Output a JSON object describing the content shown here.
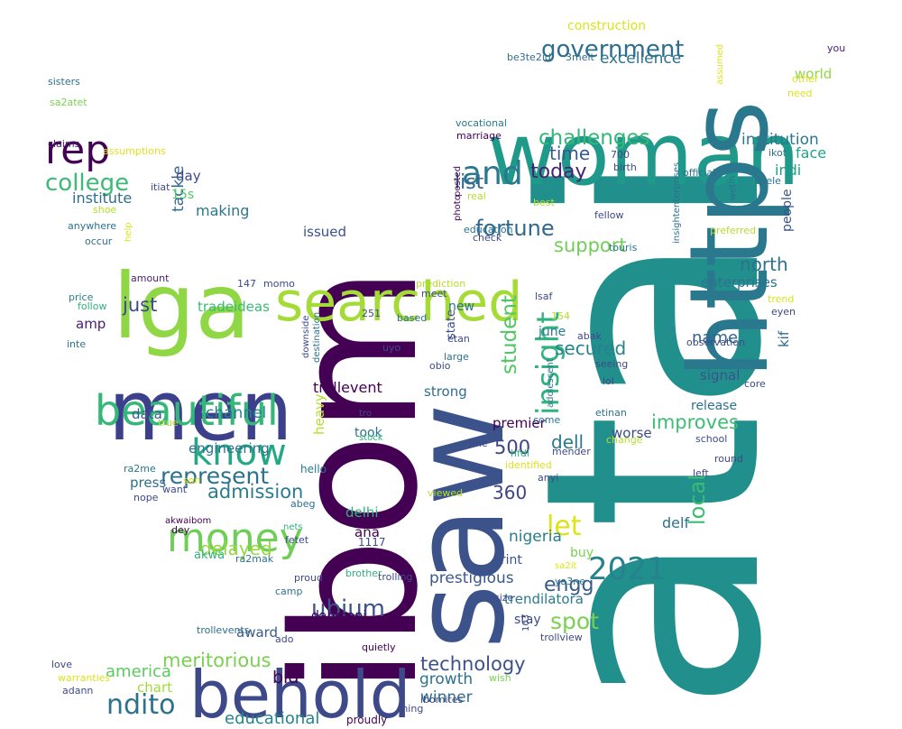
{
  "words": [
    {
      "text": "atai",
      "color": "#21908d"
    },
    {
      "text": "ibom",
      "color": "#440154"
    },
    {
      "text": "saw",
      "color": "#3b528b"
    },
    {
      "text": "woman",
      "color": "#1f9a8a"
    },
    {
      "text": "lga",
      "color": "#8fd744"
    },
    {
      "text": "men",
      "color": "#3b3f8c"
    },
    {
      "text": "https",
      "color": "#2a788e"
    },
    {
      "text": "searched",
      "color": "#a5db36"
    },
    {
      "text": "behold",
      "color": "#3e4989"
    },
    {
      "text": "beautiful",
      "color": "#35b779"
    },
    {
      "text": "rep",
      "color": "#440154"
    },
    {
      "text": "money",
      "color": "#6ece58"
    },
    {
      "text": "know",
      "color": "#22a884"
    },
    {
      "text": "and",
      "color": "#2a788e"
    },
    {
      "text": "government",
      "color": "#2e6e8e"
    },
    {
      "text": "college",
      "color": "#3bbb75"
    },
    {
      "text": "challenges",
      "color": "#35b779"
    },
    {
      "text": "2021",
      "color": "#26828e"
    },
    {
      "text": "represent",
      "color": "#2c728e"
    },
    {
      "text": "insight",
      "color": "#2eb37c"
    },
    {
      "text": "ubium",
      "color": "#3b528b"
    },
    {
      "text": "ndito",
      "color": "#2c728e"
    },
    {
      "text": "fortune",
      "color": "#31688e"
    },
    {
      "text": "today",
      "color": "#482173"
    },
    {
      "text": "admission",
      "color": "#287c8e"
    },
    {
      "text": "improves",
      "color": "#3dbc74"
    },
    {
      "text": "student",
      "color": "#52c569"
    },
    {
      "text": "list",
      "color": "#31688e"
    },
    {
      "text": "let",
      "color": "#dde318"
    },
    {
      "text": "local",
      "color": "#3dbc74"
    },
    {
      "text": "engg",
      "color": "#375a8c"
    },
    {
      "text": "spot",
      "color": "#7ad151"
    },
    {
      "text": "meritorious",
      "color": "#7ad151"
    },
    {
      "text": "technology",
      "color": "#3b528b"
    },
    {
      "text": "north",
      "color": "#2c728e"
    },
    {
      "text": "secured",
      "color": "#25838e"
    },
    {
      "text": "support",
      "color": "#6ece58"
    },
    {
      "text": "delayed",
      "color": "#95d840"
    },
    {
      "text": "america",
      "color": "#5ec962"
    },
    {
      "text": "just",
      "color": "#3e4989"
    },
    {
      "text": "time",
      "color": "#375a8c"
    },
    {
      "text": "excellence",
      "color": "#2c728e"
    },
    {
      "text": "institution",
      "color": "#2a788e"
    },
    {
      "text": "educational",
      "color": "#26828e"
    },
    {
      "text": "500",
      "color": "#404387"
    },
    {
      "text": "360",
      "color": "#404387"
    },
    {
      "text": "dell",
      "color": "#2a788e"
    },
    {
      "text": "tackle",
      "color": "#31688e"
    },
    {
      "text": "channel",
      "color": "#26828e"
    },
    {
      "text": "name",
      "color": "#31688e"
    },
    {
      "text": "bid",
      "color": "#440154"
    },
    {
      "text": "growth",
      "color": "#2c728e"
    },
    {
      "text": "winner",
      "color": "#2e6e8e"
    },
    {
      "text": "nigeria",
      "color": "#287c8e"
    },
    {
      "text": "prestigious",
      "color": "#38598c"
    },
    {
      "text": "trendilatora",
      "color": "#2a788e"
    },
    {
      "text": "world",
      "color": "#8fd744"
    },
    {
      "text": "face",
      "color": "#20a386"
    },
    {
      "text": "indi",
      "color": "#1f9e89"
    },
    {
      "text": "award",
      "color": "#375a8c"
    },
    {
      "text": "making",
      "color": "#2a788e"
    },
    {
      "text": "institute",
      "color": "#2e6e8e"
    },
    {
      "text": "day",
      "color": "#3e4989"
    },
    {
      "text": "15s",
      "color": "#52c569"
    },
    {
      "text": "construction",
      "color": "#dde318"
    },
    {
      "text": "kif",
      "color": "#31688e"
    },
    {
      "text": "people",
      "color": "#3b528b"
    },
    {
      "text": "enterprises",
      "color": "#2c728e"
    },
    {
      "text": "premier",
      "color": "#440154"
    },
    {
      "text": "strong",
      "color": "#2e6e8e"
    },
    {
      "text": "took",
      "color": "#2c728e"
    },
    {
      "text": "heavy",
      "color": "#b5de2b"
    },
    {
      "text": "trollevent",
      "color": "#440154"
    },
    {
      "text": "signal",
      "color": "#3b528b"
    },
    {
      "text": "release",
      "color": "#2c728e"
    },
    {
      "text": "worse",
      "color": "#3e4989"
    },
    {
      "text": "delf",
      "color": "#2c728e"
    },
    {
      "text": "june",
      "color": "#2a788e"
    },
    {
      "text": "engineering",
      "color": "#2c728e"
    },
    {
      "text": "press",
      "color": "#2e6e8e"
    },
    {
      "text": "delhi",
      "color": "#2eb37c"
    },
    {
      "text": "data",
      "color": "#375a8c"
    },
    {
      "text": "issued",
      "color": "#3b528b"
    },
    {
      "text": "amp",
      "color": "#482173"
    },
    {
      "text": "ana",
      "color": "#440154"
    },
    {
      "text": "print",
      "color": "#3b528b"
    },
    {
      "text": "buy",
      "color": "#7ad151"
    },
    {
      "text": "stay",
      "color": "#3e4989"
    },
    {
      "text": "dahmani",
      "color": "#440154"
    },
    {
      "text": "chart",
      "color": "#a0da39"
    },
    {
      "text": "akwa",
      "color": "#2eb37c"
    },
    {
      "text": "new",
      "color": "#2c728e"
    },
    {
      "text": "tradeideas",
      "color": "#3bbb75"
    },
    {
      "text": "state",
      "color": "#3e4989"
    },
    {
      "text": "1117",
      "color": "#3e4989"
    },
    {
      "text": "hello",
      "color": "#2a788e"
    },
    {
      "text": "proudly",
      "color": "#440154"
    },
    {
      "text": "trollview",
      "color": "#3e4989"
    },
    {
      "text": "trollevents",
      "color": "#2e6e8e"
    },
    {
      "text": "posted",
      "color": "#440154"
    },
    {
      "text": "photo",
      "color": "#440154"
    },
    {
      "text": "vocational",
      "color": "#2a788e"
    },
    {
      "text": "marriage",
      "color": "#440154"
    },
    {
      "text": "be3te2id",
      "color": "#2e6e8e"
    },
    {
      "text": "3melt",
      "color": "#2e6e8e"
    },
    {
      "text": "assumed",
      "color": "#dde318"
    },
    {
      "text": "other",
      "color": "#dde318"
    },
    {
      "text": "need",
      "color": "#dde318"
    },
    {
      "text": "you",
      "color": "#482173"
    },
    {
      "text": "sisters",
      "color": "#2c728e"
    },
    {
      "text": "sa2atet",
      "color": "#7ad151"
    },
    {
      "text": "claims",
      "color": "#482173"
    },
    {
      "text": "assumptions",
      "color": "#dde318"
    },
    {
      "text": "itiat",
      "color": "#3e4989"
    },
    {
      "text": "shoe",
      "color": "#b5de2b"
    },
    {
      "text": "anywhere",
      "color": "#2c728e"
    },
    {
      "text": "occur",
      "color": "#2e6e8e"
    },
    {
      "text": "help",
      "color": "#dde318"
    },
    {
      "text": "amount",
      "color": "#482173"
    },
    {
      "text": "147",
      "color": "#3e4989"
    },
    {
      "text": "momo",
      "color": "#3e4989"
    },
    {
      "text": "price",
      "color": "#26828e"
    },
    {
      "text": "follow",
      "color": "#2eb37c"
    },
    {
      "text": "inte",
      "color": "#2c728e"
    },
    {
      "text": "251",
      "color": "#3e4989"
    },
    {
      "text": "based",
      "color": "#2c728e"
    },
    {
      "text": "uyo",
      "color": "#3e4989"
    },
    {
      "text": "downside",
      "color": "#3e4989"
    },
    {
      "text": "destination",
      "color": "#2c728e"
    },
    {
      "text": "true",
      "color": "#b5de2b"
    },
    {
      "text": "ra2me",
      "color": "#2a788e"
    },
    {
      "text": "son",
      "color": "#dde318"
    },
    {
      "text": "want",
      "color": "#3e4989"
    },
    {
      "text": "nope",
      "color": "#3e4989"
    },
    {
      "text": "abeg",
      "color": "#2e6e8e"
    },
    {
      "text": "akwaibom",
      "color": "#440154"
    },
    {
      "text": "dey",
      "color": "#440154"
    },
    {
      "text": "nets",
      "color": "#2eb37c"
    },
    {
      "text": "fetet",
      "color": "#3e4989"
    },
    {
      "text": "ra2mak",
      "color": "#2c728e"
    },
    {
      "text": "camp",
      "color": "#2c728e"
    },
    {
      "text": "brother",
      "color": "#2eb37c"
    },
    {
      "text": "trolling",
      "color": "#3e4989"
    },
    {
      "text": "proud",
      "color": "#3e4989"
    },
    {
      "text": "ado",
      "color": "#3e4989"
    },
    {
      "text": "quietly",
      "color": "#440154"
    },
    {
      "text": "love",
      "color": "#3e4989"
    },
    {
      "text": "warranties",
      "color": "#dde318"
    },
    {
      "text": "adann",
      "color": "#3e4989"
    },
    {
      "text": "wish",
      "color": "#7ad151"
    },
    {
      "text": "thing",
      "color": "#3e4989"
    },
    {
      "text": "ibomites",
      "color": "#3e4989"
    },
    {
      "text": "103",
      "color": "#3e4989"
    },
    {
      "text": "size",
      "color": "#3e4989"
    },
    {
      "text": "ya3ne",
      "color": "#2c728e"
    },
    {
      "text": "sa2it",
      "color": "#dde318"
    },
    {
      "text": "anyi",
      "color": "#3e4989"
    },
    {
      "text": "identified",
      "color": "#dde318"
    },
    {
      "text": "viewed",
      "color": "#b5de2b"
    },
    {
      "text": "fine",
      "color": "#3e4989"
    },
    {
      "text": "hfdi",
      "color": "#2eb37c"
    },
    {
      "text": "mender",
      "color": "#3e4989"
    },
    {
      "text": "stock",
      "color": "#2eb37c"
    },
    {
      "text": "tro",
      "color": "#3e4989"
    },
    {
      "text": "come",
      "color": "#2c728e"
    },
    {
      "text": "change",
      "color": "#b5de2b"
    },
    {
      "text": "etinan",
      "color": "#2c728e"
    },
    {
      "text": "adolescent",
      "color": "#2c728e"
    },
    {
      "text": "lol",
      "color": "#3e4989"
    },
    {
      "text": "seeing",
      "color": "#3e4989"
    },
    {
      "text": "large",
      "color": "#2c728e"
    },
    {
      "text": "obio",
      "color": "#3e4989"
    },
    {
      "text": "etan",
      "color": "#3e4989"
    },
    {
      "text": "abak",
      "color": "#3e4989"
    },
    {
      "text": "154",
      "color": "#b5de2b"
    },
    {
      "text": "lsaf",
      "color": "#3e4989"
    },
    {
      "text": "meet",
      "color": "#3e4989"
    },
    {
      "text": "prediction",
      "color": "#b5de2b"
    },
    {
      "text": "touris",
      "color": "#2c728e"
    },
    {
      "text": "check",
      "color": "#3e4989"
    },
    {
      "text": "education",
      "color": "#2c728e"
    },
    {
      "text": "real",
      "color": "#b5de2b"
    },
    {
      "text": "best",
      "color": "#b5de2b"
    },
    {
      "text": "fellow",
      "color": "#3e4989"
    },
    {
      "text": "preferred",
      "color": "#b5de2b"
    },
    {
      "text": "insightenterprises",
      "color": "#2c728e"
    },
    {
      "text": "birth",
      "color": "#3e4989"
    },
    {
      "text": "700",
      "color": "#3e4989"
    },
    {
      "text": "official",
      "color": "#2c728e"
    },
    {
      "text": "wetin",
      "color": "#2c728e"
    },
    {
      "text": "ikot",
      "color": "#2c728e"
    },
    {
      "text": "kpele",
      "color": "#2c728e"
    },
    {
      "text": "trend",
      "color": "#dde318"
    },
    {
      "text": "eyen",
      "color": "#3e4989"
    },
    {
      "text": "observation",
      "color": "#3e4989"
    },
    {
      "text": "core",
      "color": "#3e4989"
    },
    {
      "text": "school",
      "color": "#3e4989"
    },
    {
      "text": "round",
      "color": "#3e4989"
    },
    {
      "text": "left",
      "color": "#3e4989"
    }
  ]
}
